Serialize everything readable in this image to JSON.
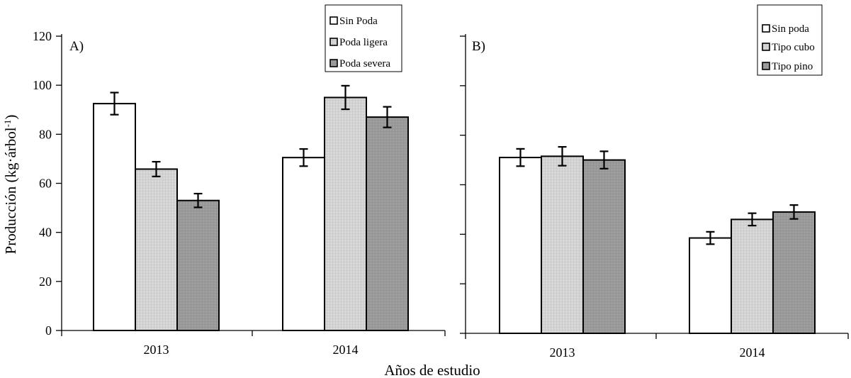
{
  "figure": {
    "ylabel_main": "Producción (kg·árbol",
    "ylabel_sup": "-1",
    "ylabel_close": ")",
    "xlabel": "Años de estudio"
  },
  "chart_data": [
    {
      "type": "bar",
      "panel_label": "A)",
      "categories": [
        "2013",
        "2014"
      ],
      "ylim": [
        0,
        120
      ],
      "yticks": [
        "0",
        "20",
        "40",
        "60",
        "80",
        "100",
        "120"
      ],
      "legend_position": "top-center",
      "series": [
        {
          "name": "Sin Poda",
          "color": "#ffffff",
          "values": [
            92.5,
            70.5
          ],
          "errors": [
            4.5,
            3.5
          ]
        },
        {
          "name": "Poda ligera",
          "color": "#d3d3d3",
          "values": [
            65.8,
            95.0
          ],
          "errors": [
            3.0,
            4.8
          ]
        },
        {
          "name": "Poda severa",
          "color": "#9a9a9a",
          "values": [
            53.0,
            87.0
          ],
          "errors": [
            2.8,
            4.2
          ]
        }
      ]
    },
    {
      "type": "bar",
      "panel_label": "B)",
      "categories": [
        "2013",
        "2014"
      ],
      "ylim": [
        0,
        120
      ],
      "yticks": [],
      "legend_position": "top-right",
      "series": [
        {
          "name": "Sin poda",
          "color": "#ffffff",
          "values": [
            71.0,
            38.5
          ],
          "errors": [
            3.5,
            2.5
          ]
        },
        {
          "name": "Tipo cubo",
          "color": "#d3d3d3",
          "values": [
            71.5,
            46.0
          ],
          "errors": [
            3.8,
            2.5
          ]
        },
        {
          "name": "Tipo pino",
          "color": "#9a9a9a",
          "values": [
            70.0,
            49.0
          ],
          "errors": [
            3.5,
            2.8
          ]
        }
      ]
    }
  ]
}
